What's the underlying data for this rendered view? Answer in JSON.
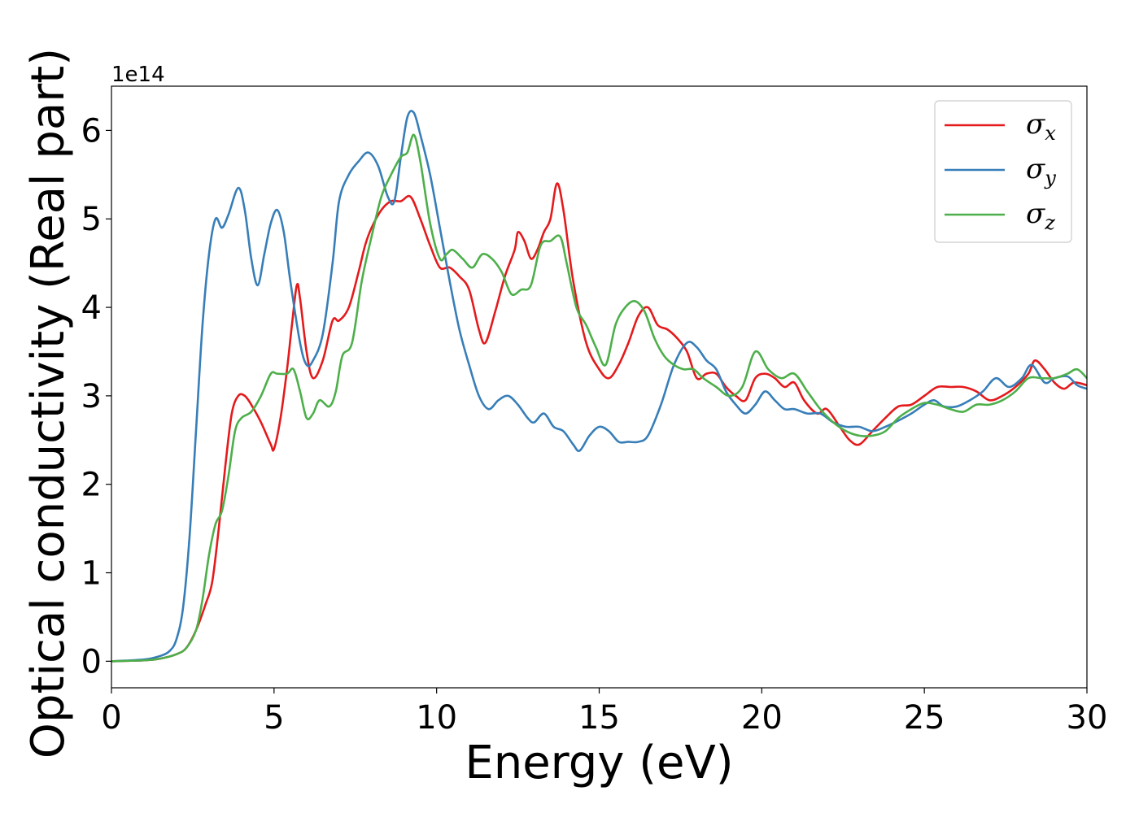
{
  "chart_data": {
    "type": "line",
    "title": "",
    "xlabel": "Energy (eV)",
    "ylabel": "Optical conductivity (Real part)",
    "y_offset_label": "1e14",
    "xlim": [
      0,
      30
    ],
    "ylim": [
      -0.3,
      6.5
    ],
    "y_multiplier": 100000000000000.0,
    "xticks": [
      0,
      5,
      10,
      15,
      20,
      25,
      30
    ],
    "yticks": [
      0,
      1,
      2,
      3,
      4,
      5,
      6
    ],
    "grid": false,
    "legend_position": "top-right",
    "series": [
      {
        "name": "σx",
        "symbol": "σ",
        "subscript": "x",
        "color": "#e41a1c",
        "points": [
          [
            0,
            0
          ],
          [
            1,
            0.01
          ],
          [
            1.5,
            0.03
          ],
          [
            2,
            0.08
          ],
          [
            2.3,
            0.15
          ],
          [
            2.6,
            0.35
          ],
          [
            2.9,
            0.65
          ],
          [
            3.1,
            0.9
          ],
          [
            3.3,
            1.5
          ],
          [
            3.5,
            2.2
          ],
          [
            3.7,
            2.8
          ],
          [
            3.9,
            3.0
          ],
          [
            4.1,
            3.0
          ],
          [
            4.3,
            2.9
          ],
          [
            4.6,
            2.7
          ],
          [
            4.9,
            2.45
          ],
          [
            5.0,
            2.4
          ],
          [
            5.2,
            2.75
          ],
          [
            5.4,
            3.3
          ],
          [
            5.55,
            3.8
          ],
          [
            5.7,
            4.25
          ],
          [
            5.8,
            4.1
          ],
          [
            6.0,
            3.5
          ],
          [
            6.2,
            3.2
          ],
          [
            6.5,
            3.4
          ],
          [
            6.8,
            3.85
          ],
          [
            7.0,
            3.85
          ],
          [
            7.3,
            4.0
          ],
          [
            7.6,
            4.4
          ],
          [
            7.8,
            4.7
          ],
          [
            8.0,
            4.9
          ],
          [
            8.3,
            5.1
          ],
          [
            8.6,
            5.2
          ],
          [
            8.9,
            5.2
          ],
          [
            9.2,
            5.25
          ],
          [
            9.5,
            5.0
          ],
          [
            9.8,
            4.7
          ],
          [
            10.1,
            4.45
          ],
          [
            10.4,
            4.45
          ],
          [
            10.7,
            4.35
          ],
          [
            11.0,
            4.2
          ],
          [
            11.3,
            3.75
          ],
          [
            11.5,
            3.6
          ],
          [
            11.8,
            3.95
          ],
          [
            12.1,
            4.35
          ],
          [
            12.4,
            4.65
          ],
          [
            12.5,
            4.85
          ],
          [
            12.7,
            4.75
          ],
          [
            12.9,
            4.55
          ],
          [
            13.1,
            4.65
          ],
          [
            13.3,
            4.85
          ],
          [
            13.5,
            5.0
          ],
          [
            13.7,
            5.4
          ],
          [
            13.9,
            5.1
          ],
          [
            14.2,
            4.3
          ],
          [
            14.6,
            3.6
          ],
          [
            15.0,
            3.3
          ],
          [
            15.3,
            3.2
          ],
          [
            15.6,
            3.35
          ],
          [
            15.9,
            3.6
          ],
          [
            16.2,
            3.9
          ],
          [
            16.5,
            4.0
          ],
          [
            16.8,
            3.8
          ],
          [
            17.1,
            3.75
          ],
          [
            17.4,
            3.65
          ],
          [
            17.7,
            3.5
          ],
          [
            18.0,
            3.2
          ],
          [
            18.3,
            3.25
          ],
          [
            18.6,
            3.25
          ],
          [
            18.9,
            3.1
          ],
          [
            19.2,
            3.0
          ],
          [
            19.5,
            2.95
          ],
          [
            19.8,
            3.2
          ],
          [
            20.1,
            3.25
          ],
          [
            20.4,
            3.2
          ],
          [
            20.7,
            3.1
          ],
          [
            21.0,
            3.15
          ],
          [
            21.3,
            2.95
          ],
          [
            21.7,
            2.8
          ],
          [
            22.0,
            2.85
          ],
          [
            22.4,
            2.65
          ],
          [
            22.7,
            2.5
          ],
          [
            23.0,
            2.45
          ],
          [
            23.4,
            2.6
          ],
          [
            23.8,
            2.75
          ],
          [
            24.2,
            2.88
          ],
          [
            24.6,
            2.9
          ],
          [
            25.0,
            3.0
          ],
          [
            25.4,
            3.1
          ],
          [
            25.8,
            3.1
          ],
          [
            26.2,
            3.1
          ],
          [
            26.6,
            3.05
          ],
          [
            27.0,
            2.95
          ],
          [
            27.4,
            3.0
          ],
          [
            27.8,
            3.1
          ],
          [
            28.2,
            3.25
          ],
          [
            28.4,
            3.4
          ],
          [
            28.7,
            3.3
          ],
          [
            29.0,
            3.15
          ],
          [
            29.3,
            3.08
          ],
          [
            29.6,
            3.15
          ],
          [
            30.0,
            3.12
          ]
        ]
      },
      {
        "name": "σy",
        "symbol": "σ",
        "subscript": "y",
        "color": "#377eb8",
        "points": [
          [
            0,
            0
          ],
          [
            1,
            0.02
          ],
          [
            1.5,
            0.06
          ],
          [
            1.8,
            0.12
          ],
          [
            2.0,
            0.25
          ],
          [
            2.2,
            0.6
          ],
          [
            2.4,
            1.4
          ],
          [
            2.6,
            2.6
          ],
          [
            2.8,
            3.8
          ],
          [
            3.0,
            4.6
          ],
          [
            3.2,
            5.0
          ],
          [
            3.4,
            4.9
          ],
          [
            3.6,
            5.05
          ],
          [
            3.9,
            5.35
          ],
          [
            4.1,
            5.1
          ],
          [
            4.3,
            4.55
          ],
          [
            4.5,
            4.25
          ],
          [
            4.7,
            4.6
          ],
          [
            4.9,
            4.95
          ],
          [
            5.1,
            5.1
          ],
          [
            5.3,
            4.85
          ],
          [
            5.5,
            4.3
          ],
          [
            5.8,
            3.6
          ],
          [
            6.0,
            3.35
          ],
          [
            6.2,
            3.4
          ],
          [
            6.5,
            3.7
          ],
          [
            6.8,
            4.5
          ],
          [
            7.0,
            5.2
          ],
          [
            7.3,
            5.5
          ],
          [
            7.6,
            5.65
          ],
          [
            7.9,
            5.75
          ],
          [
            8.2,
            5.6
          ],
          [
            8.5,
            5.25
          ],
          [
            8.7,
            5.2
          ],
          [
            8.9,
            5.7
          ],
          [
            9.1,
            6.15
          ],
          [
            9.3,
            6.2
          ],
          [
            9.5,
            5.95
          ],
          [
            9.8,
            5.5
          ],
          [
            10.1,
            4.9
          ],
          [
            10.4,
            4.3
          ],
          [
            10.7,
            3.75
          ],
          [
            11.0,
            3.35
          ],
          [
            11.3,
            3.0
          ],
          [
            11.6,
            2.85
          ],
          [
            11.9,
            2.95
          ],
          [
            12.2,
            3.0
          ],
          [
            12.5,
            2.9
          ],
          [
            12.8,
            2.75
          ],
          [
            13.0,
            2.7
          ],
          [
            13.3,
            2.8
          ],
          [
            13.6,
            2.65
          ],
          [
            13.9,
            2.6
          ],
          [
            14.2,
            2.45
          ],
          [
            14.4,
            2.38
          ],
          [
            14.7,
            2.55
          ],
          [
            15.0,
            2.65
          ],
          [
            15.3,
            2.6
          ],
          [
            15.6,
            2.48
          ],
          [
            15.9,
            2.48
          ],
          [
            16.2,
            2.48
          ],
          [
            16.5,
            2.55
          ],
          [
            16.9,
            2.9
          ],
          [
            17.3,
            3.35
          ],
          [
            17.7,
            3.6
          ],
          [
            18.0,
            3.55
          ],
          [
            18.3,
            3.4
          ],
          [
            18.6,
            3.3
          ],
          [
            18.9,
            3.05
          ],
          [
            19.2,
            2.9
          ],
          [
            19.5,
            2.8
          ],
          [
            19.8,
            2.9
          ],
          [
            20.1,
            3.05
          ],
          [
            20.4,
            2.95
          ],
          [
            20.7,
            2.85
          ],
          [
            21.0,
            2.85
          ],
          [
            21.4,
            2.8
          ],
          [
            21.8,
            2.8
          ],
          [
            22.2,
            2.7
          ],
          [
            22.6,
            2.65
          ],
          [
            23.0,
            2.65
          ],
          [
            23.4,
            2.6
          ],
          [
            23.8,
            2.65
          ],
          [
            24.2,
            2.72
          ],
          [
            24.6,
            2.8
          ],
          [
            25.0,
            2.9
          ],
          [
            25.3,
            2.95
          ],
          [
            25.6,
            2.88
          ],
          [
            26.0,
            2.88
          ],
          [
            26.4,
            2.95
          ],
          [
            26.8,
            3.05
          ],
          [
            27.2,
            3.2
          ],
          [
            27.6,
            3.1
          ],
          [
            28.0,
            3.2
          ],
          [
            28.3,
            3.35
          ],
          [
            28.7,
            3.15
          ],
          [
            29.0,
            3.2
          ],
          [
            29.4,
            3.22
          ],
          [
            29.7,
            3.12
          ],
          [
            30.0,
            3.08
          ]
        ]
      },
      {
        "name": "σz",
        "symbol": "σ",
        "subscript": "z",
        "color": "#4daf4a",
        "points": [
          [
            0,
            0
          ],
          [
            1,
            0.01
          ],
          [
            1.5,
            0.03
          ],
          [
            2,
            0.08
          ],
          [
            2.3,
            0.15
          ],
          [
            2.6,
            0.35
          ],
          [
            2.8,
            0.7
          ],
          [
            3.0,
            1.2
          ],
          [
            3.2,
            1.55
          ],
          [
            3.4,
            1.7
          ],
          [
            3.6,
            2.1
          ],
          [
            3.8,
            2.6
          ],
          [
            4.0,
            2.75
          ],
          [
            4.3,
            2.82
          ],
          [
            4.6,
            3.0
          ],
          [
            4.9,
            3.25
          ],
          [
            5.1,
            3.25
          ],
          [
            5.4,
            3.25
          ],
          [
            5.6,
            3.3
          ],
          [
            5.8,
            3.05
          ],
          [
            6.0,
            2.75
          ],
          [
            6.2,
            2.8
          ],
          [
            6.4,
            2.95
          ],
          [
            6.7,
            2.88
          ],
          [
            6.9,
            3.05
          ],
          [
            7.1,
            3.45
          ],
          [
            7.4,
            3.6
          ],
          [
            7.7,
            4.3
          ],
          [
            8.0,
            4.8
          ],
          [
            8.3,
            5.25
          ],
          [
            8.6,
            5.5
          ],
          [
            8.9,
            5.7
          ],
          [
            9.1,
            5.75
          ],
          [
            9.3,
            5.95
          ],
          [
            9.5,
            5.65
          ],
          [
            9.8,
            4.95
          ],
          [
            10.1,
            4.55
          ],
          [
            10.3,
            4.6
          ],
          [
            10.5,
            4.65
          ],
          [
            10.8,
            4.55
          ],
          [
            11.1,
            4.45
          ],
          [
            11.4,
            4.6
          ],
          [
            11.7,
            4.55
          ],
          [
            12.0,
            4.4
          ],
          [
            12.3,
            4.15
          ],
          [
            12.6,
            4.2
          ],
          [
            12.9,
            4.25
          ],
          [
            13.2,
            4.7
          ],
          [
            13.5,
            4.75
          ],
          [
            13.8,
            4.8
          ],
          [
            14.0,
            4.5
          ],
          [
            14.3,
            4.0
          ],
          [
            14.6,
            3.8
          ],
          [
            14.9,
            3.55
          ],
          [
            15.2,
            3.35
          ],
          [
            15.5,
            3.8
          ],
          [
            15.8,
            4.0
          ],
          [
            16.1,
            4.07
          ],
          [
            16.4,
            3.95
          ],
          [
            16.7,
            3.65
          ],
          [
            17.0,
            3.45
          ],
          [
            17.3,
            3.35
          ],
          [
            17.6,
            3.3
          ],
          [
            17.9,
            3.3
          ],
          [
            18.2,
            3.2
          ],
          [
            18.6,
            3.1
          ],
          [
            19.0,
            3.0
          ],
          [
            19.4,
            3.1
          ],
          [
            19.8,
            3.5
          ],
          [
            20.2,
            3.3
          ],
          [
            20.6,
            3.2
          ],
          [
            21.0,
            3.25
          ],
          [
            21.4,
            3.05
          ],
          [
            21.8,
            2.85
          ],
          [
            22.2,
            2.7
          ],
          [
            22.6,
            2.6
          ],
          [
            23.0,
            2.55
          ],
          [
            23.4,
            2.55
          ],
          [
            23.8,
            2.6
          ],
          [
            24.2,
            2.75
          ],
          [
            24.6,
            2.85
          ],
          [
            25.0,
            2.92
          ],
          [
            25.4,
            2.9
          ],
          [
            25.8,
            2.85
          ],
          [
            26.2,
            2.82
          ],
          [
            26.6,
            2.9
          ],
          [
            27.0,
            2.9
          ],
          [
            27.4,
            2.95
          ],
          [
            27.8,
            3.05
          ],
          [
            28.2,
            3.2
          ],
          [
            28.6,
            3.2
          ],
          [
            29.0,
            3.2
          ],
          [
            29.4,
            3.25
          ],
          [
            29.7,
            3.3
          ],
          [
            30.0,
            3.2
          ]
        ]
      }
    ]
  }
}
